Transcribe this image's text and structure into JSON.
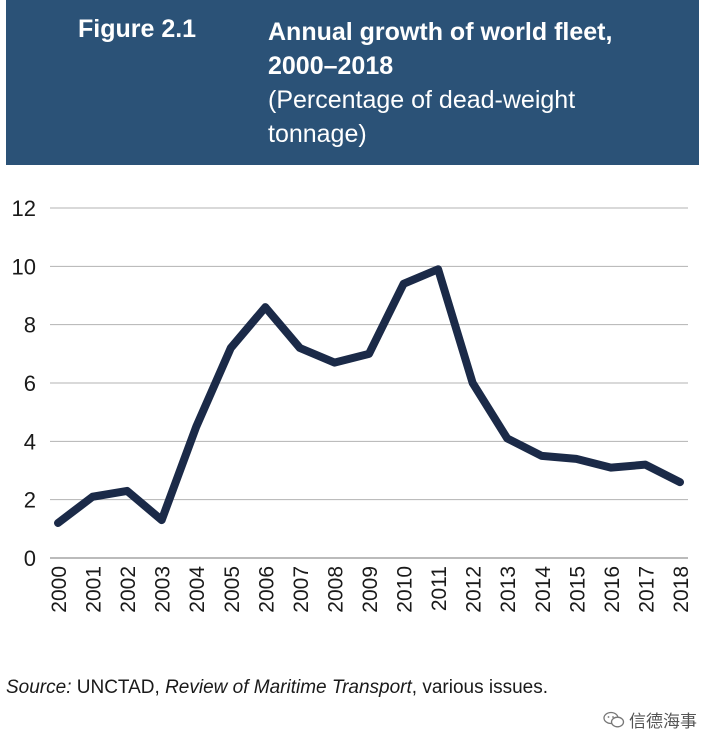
{
  "header": {
    "figure_label": "Figure 2.1",
    "title_line1": "Annual growth of world fleet,",
    "title_line2": "2000–2018",
    "subtitle_line1": "(Percentage of dead-weight",
    "subtitle_line2": "tonnage)"
  },
  "colors": {
    "header_bg": "#2b5277",
    "line": "#1b2a48",
    "grid": "#b3b3b3"
  },
  "chart_data": {
    "type": "line",
    "x": [
      "2000",
      "2001",
      "2002",
      "2003",
      "2004",
      "2005",
      "2006",
      "2007",
      "2008",
      "2009",
      "2010",
      "2011",
      "2012",
      "2013",
      "2014",
      "2015",
      "2016",
      "2017",
      "2018"
    ],
    "series": [
      {
        "values": [
          1.2,
          2.1,
          2.3,
          1.3,
          4.5,
          7.2,
          8.6,
          7.2,
          6.7,
          7.0,
          9.4,
          9.9,
          6.0,
          4.1,
          3.5,
          3.4,
          3.1,
          3.2,
          2.6
        ]
      }
    ],
    "ylim": [
      0,
      12
    ],
    "yticks": [
      "0",
      "2",
      "4",
      "6",
      "8",
      "10",
      "12"
    ],
    "grid": true
  },
  "source": {
    "prefix": "Source:",
    "org": " UNCTAD, ",
    "publication": "Review of Maritime Transport",
    "suffix": ", various issues."
  },
  "watermark": {
    "icon": "wechat-icon",
    "text": "信德海事"
  }
}
